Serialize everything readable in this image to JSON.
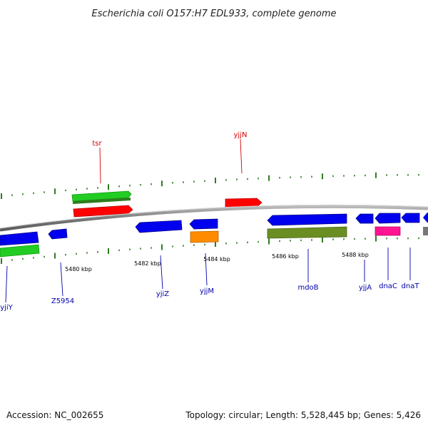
{
  "title": "Escherichia coli O157:H7 EDL933, complete genome",
  "footer": {
    "accession": "Accession: NC_002655",
    "summary": "Topology: circular; Length: 5,528,445 bp; Genes: 5,426"
  },
  "colors": {
    "backbone": "#8c8c8c",
    "tick": "#2e7d1e",
    "label_forward": "#d40000",
    "label_reverse": "#0000aa",
    "red": "#ff0000",
    "green": "#22cc22",
    "darkgreen": "#2e7d1e",
    "blue": "#0000ee",
    "orange": "#ff8c00",
    "olive": "#6b8e23",
    "magenta": "#ff1493",
    "gray": "#777777"
  },
  "scale_labels": [
    "5480 kbp",
    "5482 kbp",
    "5484 kbp",
    "5486 kbp",
    "5488 kbp"
  ],
  "gene_labels": {
    "tsr": "tsr",
    "yjjN": "yjjN",
    "yjiY": "yjiY",
    "Z5954": "Z5954",
    "yjiZ": "yjiZ",
    "yjjM": "yjjM",
    "mdoB": "mdoB",
    "yjjA": "yjjA",
    "dnaC": "dnaC",
    "dnaT": "dnaT"
  }
}
